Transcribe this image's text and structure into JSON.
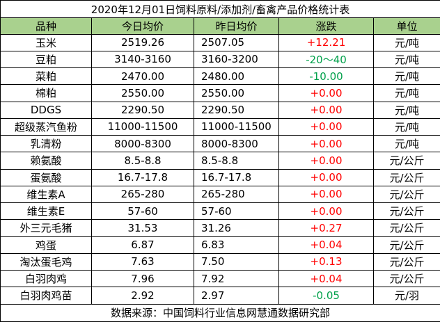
{
  "title": "2020年12月01日饲料原料/添加剂/畜禽产品价格统计表",
  "table": {
    "header": [
      "品种",
      "今日均价",
      "昨日均价",
      "涨跌",
      "单位"
    ],
    "rows": [
      [
        "玉米",
        "2519.26",
        "2507.05",
        "+12.21",
        "元/吨"
      ],
      [
        "豆粕",
        "3140-3160",
        "3160-3200",
        "-20～40",
        "元/吨"
      ],
      [
        "菜粕",
        "2470.00",
        "2480.00",
        "-10.00",
        "元/吨"
      ],
      [
        "棉粕",
        "2550.00",
        "2550.00",
        "+0.00",
        "元/吨"
      ],
      [
        "DDGS",
        "2290.50",
        "2290.50",
        "+0.00",
        "元/吨"
      ],
      [
        "超级蒸汽鱼粉",
        "11000-11500",
        "11000-11500",
        "+0.00",
        "元/吨"
      ],
      [
        "乳清粉",
        "8000-8300",
        "8000-8300",
        "+0.00",
        "元/吨"
      ],
      [
        "赖氨酸",
        "8.5-8.8",
        "8.5-8.8",
        "+0.00",
        "元/公斤"
      ],
      [
        "蛋氨酸",
        "16.7-17.8",
        "16.7-17.8",
        "+0.00",
        "元/公斤"
      ],
      [
        "维生素A",
        "265-280",
        "265-280",
        "+0.00",
        "元/公斤"
      ],
      [
        "维生素E",
        "57-60",
        "57-60",
        "+0.00",
        "元/公斤"
      ],
      [
        "外三元毛猪",
        "31.53",
        "31.26",
        "+0.27",
        "元/公斤"
      ],
      [
        "鸡蛋",
        "6.87",
        "6.83",
        "+0.04",
        "元/公斤"
      ],
      [
        "淘汰蛋毛鸡",
        "7.63",
        "7.50",
        "+0.13",
        "元/公斤"
      ],
      [
        "白羽肉鸡",
        "7.96",
        "7.92",
        "+0.04",
        "元/公斤"
      ],
      [
        "白羽肉鸡苗",
        "2.92",
        "2.97",
        "-0.05",
        "元/羽"
      ]
    ]
  },
  "footer": "数据来源：中国饲料行业信息网慧通数据研究部"
}
